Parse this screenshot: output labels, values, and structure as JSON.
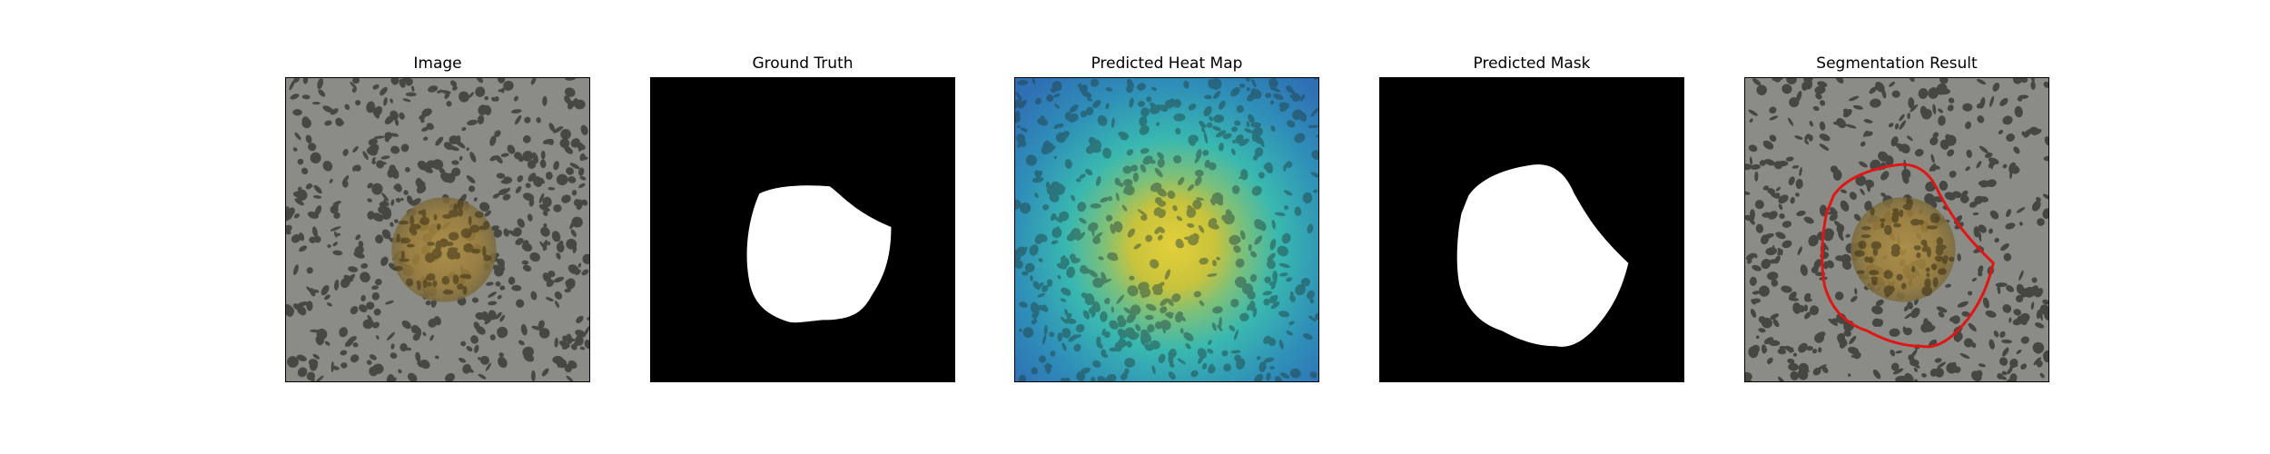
{
  "panels": [
    {
      "title": "Image"
    },
    {
      "title": "Ground Truth"
    },
    {
      "title": "Predicted Heat Map"
    },
    {
      "title": "Predicted Mask"
    },
    {
      "title": "Segmentation Result"
    }
  ],
  "colors": {
    "texture_base": "#8b8c85",
    "blotch": "#3b3b38",
    "lesion": "#9a7c38",
    "mask_bg": "#000000",
    "mask_fg": "#ffffff",
    "heat_low": "#2f6fb4",
    "heat_mid": "#39b8b0",
    "heat_high": "#e3cf3a",
    "contour": "#e01515"
  }
}
